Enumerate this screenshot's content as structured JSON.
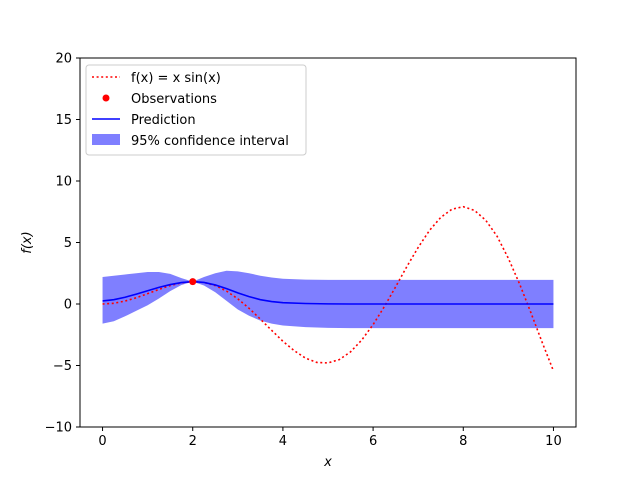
{
  "chart_data": {
    "type": "line",
    "xlabel": "x",
    "ylabel": "f(x)",
    "xlim": [
      -0.5,
      10.5
    ],
    "ylim": [
      -10,
      20
    ],
    "xticks": [
      0,
      2,
      4,
      6,
      8,
      10
    ],
    "yticks": [
      -10,
      -5,
      0,
      5,
      10,
      15,
      20
    ],
    "grid": false,
    "legend_position": "upper-left",
    "series": [
      {
        "name": "f(x) = x sin(x)",
        "style": "dotted",
        "color": "#ff0000",
        "x": [
          0,
          0.25,
          0.5,
          0.75,
          1,
          1.25,
          1.5,
          1.75,
          2,
          2.25,
          2.5,
          2.75,
          3,
          3.25,
          3.5,
          3.75,
          4,
          4.25,
          4.5,
          4.75,
          5,
          5.25,
          5.5,
          5.75,
          6,
          6.25,
          6.5,
          6.75,
          7,
          7.25,
          7.5,
          7.75,
          8,
          8.25,
          8.5,
          8.75,
          9,
          9.25,
          9.5,
          9.75,
          10
        ],
        "y": [
          0,
          0.06,
          0.24,
          0.51,
          0.84,
          1.19,
          1.5,
          1.72,
          1.82,
          1.75,
          1.5,
          1.05,
          0.42,
          -0.35,
          -1.23,
          -2.14,
          -3.03,
          -3.79,
          -4.4,
          -4.75,
          -4.79,
          -4.52,
          -3.89,
          -2.92,
          -1.68,
          -0.21,
          1.4,
          3.05,
          4.6,
          5.98,
          7.04,
          7.71,
          7.91,
          7.61,
          6.8,
          5.51,
          3.71,
          1.62,
          -0.71,
          -3.12,
          -5.44
        ]
      },
      {
        "name": "Prediction",
        "style": "solid",
        "color": "#0000ff",
        "x": [
          0,
          0.25,
          0.5,
          0.75,
          1,
          1.25,
          1.5,
          1.75,
          2,
          2.25,
          2.5,
          2.75,
          3,
          3.25,
          3.5,
          3.75,
          4,
          4.5,
          5,
          5.5,
          6,
          7,
          8,
          9,
          10
        ],
        "y": [
          0.25,
          0.35,
          0.55,
          0.8,
          1.08,
          1.35,
          1.58,
          1.74,
          1.82,
          1.75,
          1.55,
          1.25,
          0.9,
          0.6,
          0.35,
          0.2,
          0.11,
          0.04,
          0.01,
          0,
          0,
          0,
          0,
          0,
          0
        ]
      }
    ],
    "observations": {
      "name": "Observations",
      "color": "#ff0000",
      "x": [
        2
      ],
      "y": [
        1.82
      ]
    },
    "confidence_interval": {
      "name": "95% confidence interval",
      "color": "#0000ff",
      "opacity": 0.5,
      "x": [
        0,
        0.25,
        0.5,
        0.75,
        1,
        1.25,
        1.5,
        1.75,
        2,
        2.25,
        2.5,
        2.75,
        3,
        3.25,
        3.5,
        3.75,
        4,
        4.5,
        5,
        5.5,
        6,
        7,
        8,
        9,
        10
      ],
      "lower": [
        -1.6,
        -1.4,
        -1.0,
        -0.55,
        -0.1,
        0.45,
        1.05,
        1.55,
        1.82,
        1.5,
        0.95,
        0.25,
        -0.45,
        -0.95,
        -1.35,
        -1.6,
        -1.75,
        -1.88,
        -1.94,
        -1.96,
        -1.96,
        -1.96,
        -1.96,
        -1.96,
        -1.96
      ],
      "upper": [
        2.2,
        2.3,
        2.4,
        2.5,
        2.6,
        2.6,
        2.45,
        2.1,
        1.82,
        2.2,
        2.5,
        2.7,
        2.65,
        2.5,
        2.3,
        2.15,
        2.05,
        1.98,
        1.96,
        1.96,
        1.96,
        1.96,
        1.96,
        1.96,
        1.96
      ]
    }
  }
}
